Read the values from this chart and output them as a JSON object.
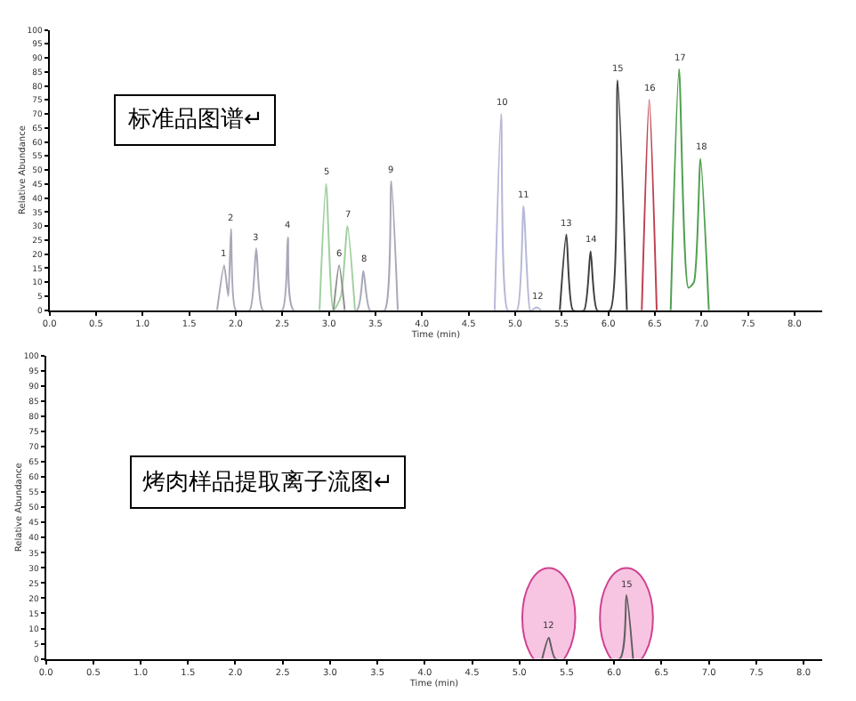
{
  "chart_data": [
    {
      "type": "line",
      "xlabel": "Time (min)",
      "ylabel": "Relative Abundance",
      "marker": "none",
      "grid": false,
      "xlim": [
        0,
        8.3
      ],
      "ylim": [
        0,
        100
      ],
      "xticks": [
        {
          "value": 0,
          "label": "0.0"
        },
        0.5,
        {
          "value": 1,
          "label": "1.0"
        },
        1.5,
        {
          "value": 2,
          "label": "2.0"
        },
        2.5,
        {
          "value": 3,
          "label": "3.0"
        },
        3.5,
        {
          "value": 4,
          "label": "4.0"
        },
        4.5,
        {
          "value": 5,
          "label": "5.0"
        },
        5.5,
        {
          "value": 6,
          "label": "6.0"
        },
        6.5,
        {
          "value": 7,
          "label": "7.0"
        },
        7.5,
        {
          "value": 8,
          "label": "8.0"
        }
      ],
      "yticks": [
        0,
        5,
        10,
        15,
        20,
        25,
        30,
        35,
        40,
        45,
        50,
        55,
        60,
        65,
        70,
        75,
        80,
        85,
        90,
        95,
        100
      ],
      "series": [
        {
          "color": "#a8a8b8",
          "x": [
            1.8,
            1.875,
            1.92,
            1.95,
            2.0,
            2.15,
            2.22,
            2.29,
            2.5,
            2.56,
            2.62,
            3.3,
            3.37,
            3.44,
            3.6,
            3.67,
            3.74
          ],
          "values": [
            0,
            16,
            5,
            29,
            0,
            0,
            22,
            0,
            0,
            26,
            0,
            0,
            14,
            0,
            0,
            46,
            0
          ]
        },
        {
          "color": "#a0d0a0",
          "x": [
            2.9,
            2.97,
            3.05,
            3.13,
            3.2,
            3.28
          ],
          "values": [
            0,
            45,
            0,
            5,
            30,
            0
          ]
        },
        {
          "color": "#909090",
          "x": [
            3.05,
            3.11,
            3.17
          ],
          "values": [
            0,
            16,
            0
          ]
        },
        {
          "color": "#b8b8d8",
          "x": [
            4.78,
            4.85,
            4.92,
            5.02,
            5.09,
            5.16,
            5.18,
            5.23,
            5.28
          ],
          "values": [
            0,
            70,
            0,
            0,
            37,
            0,
            0,
            1,
            0
          ]
        },
        {
          "color": "#404040",
          "x": [
            5.48,
            5.55,
            5.62,
            5.74,
            5.81,
            5.88,
            6.02,
            6.1,
            6.2
          ],
          "values": [
            0,
            27,
            0,
            0,
            21,
            0,
            0,
            82,
            0
          ]
        },
        {
          "color": "#c04050",
          "x": [
            6.36,
            6.44,
            6.52
          ],
          "values": [
            0,
            75,
            0
          ]
        },
        {
          "color": "#50a050",
          "x": [
            6.67,
            6.76,
            6.86,
            6.92,
            6.99,
            7.08
          ],
          "values": [
            0,
            86,
            8,
            10,
            54,
            0
          ]
        }
      ],
      "annotations": [
        "标准品图谱↵",
        {
          "text": "1",
          "x": 1.875,
          "y": 16
        },
        {
          "text": "2",
          "x": 1.95,
          "y": 29
        },
        {
          "text": "3",
          "x": 2.22,
          "y": 22
        },
        {
          "text": "4",
          "x": 2.56,
          "y": 26
        },
        {
          "text": "5",
          "x": 2.97,
          "y": 45
        },
        {
          "text": "6",
          "x": 3.11,
          "y": 16
        },
        {
          "text": "7",
          "x": 3.2,
          "y": 30
        },
        {
          "text": "8",
          "x": 3.37,
          "y": 14
        },
        {
          "text": "9",
          "x": 3.67,
          "y": 46
        },
        {
          "text": "10",
          "x": 4.85,
          "y": 70
        },
        {
          "text": "11",
          "x": 5.09,
          "y": 37
        },
        {
          "text": "12",
          "x": 5.23,
          "y": 1
        },
        {
          "text": "13",
          "x": 5.55,
          "y": 27
        },
        {
          "text": "14",
          "x": 5.81,
          "y": 21
        },
        {
          "text": "15",
          "x": 6.1,
          "y": 82
        },
        {
          "text": "16",
          "x": 6.44,
          "y": 75
        },
        {
          "text": "17",
          "x": 6.76,
          "y": 86
        },
        {
          "text": "18",
          "x": 6.99,
          "y": 54
        }
      ]
    },
    {
      "type": "line",
      "xlabel": "Time (min)",
      "ylabel": "Relative Abundance",
      "marker": "none",
      "grid": false,
      "xlim": [
        0,
        8.2
      ],
      "ylim": [
        0,
        100
      ],
      "xticks": [
        {
          "value": 0,
          "label": "0.0"
        },
        0.5,
        {
          "value": 1,
          "label": "1.0"
        },
        1.5,
        {
          "value": 2,
          "label": "2.0"
        },
        2.5,
        {
          "value": 3,
          "label": "3.0"
        },
        3.5,
        {
          "value": 4,
          "label": "4.0"
        },
        4.5,
        {
          "value": 5,
          "label": "5.0"
        },
        5.5,
        {
          "value": 6,
          "label": "6.0"
        },
        6.5,
        {
          "value": 7,
          "label": "7.0"
        },
        7.5,
        {
          "value": 8,
          "label": "8.0"
        }
      ],
      "yticks": [
        0,
        5,
        10,
        15,
        20,
        25,
        30,
        35,
        40,
        45,
        50,
        55,
        60,
        65,
        70,
        75,
        80,
        85,
        90,
        95,
        100
      ],
      "series": [
        {
          "color": "#606060",
          "x": [
            5.24,
            5.31,
            5.38,
            6.06,
            6.13,
            6.2
          ],
          "values": [
            0,
            7,
            0,
            0,
            21,
            0
          ]
        }
      ],
      "annotations": [
        "烤肉样品提取离子流图↵",
        {
          "text": "12",
          "x": 5.31,
          "y": 7
        },
        {
          "text": "15",
          "x": 6.13,
          "y": 21
        }
      ]
    }
  ]
}
